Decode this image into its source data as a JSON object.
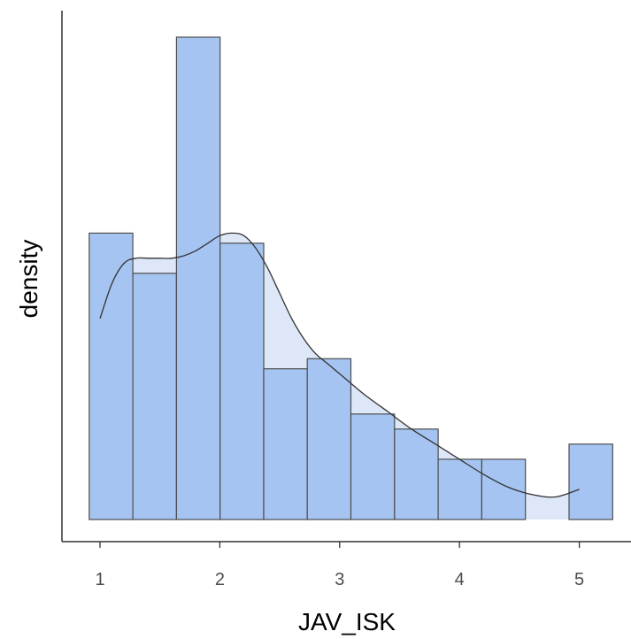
{
  "chart_data": {
    "type": "bar",
    "xlabel": "JAV_ISK",
    "ylabel": "density",
    "xlim": [
      0.83,
      5.45
    ],
    "ylim": [
      0,
      1.0
    ],
    "x_ticks": [
      1,
      2,
      3,
      4,
      5
    ],
    "y_ticks_shown": false,
    "grid": false,
    "legend": "none",
    "series": [
      {
        "kind": "histogram",
        "bin_edges": [
          0.91,
          1.274,
          1.638,
          2.002,
          2.366,
          2.73,
          3.094,
          3.458,
          3.822,
          4.186,
          4.55,
          4.914,
          5.278
        ],
        "values": [
          0.57,
          0.49,
          0.96,
          0.55,
          0.3,
          0.32,
          0.21,
          0.18,
          0.12,
          0.12,
          0.0,
          0.15
        ]
      },
      {
        "kind": "density",
        "x": [
          1.0,
          1.1,
          1.2,
          1.3,
          1.4,
          1.5,
          1.6,
          1.7,
          1.8,
          1.9,
          2.0,
          2.1,
          2.2,
          2.3,
          2.4,
          2.5,
          2.6,
          2.7,
          2.8,
          2.9,
          3.0,
          3.2,
          3.4,
          3.6,
          3.8,
          4.0,
          4.2,
          4.4,
          4.6,
          4.8,
          5.0
        ],
        "values": [
          0.4,
          0.47,
          0.51,
          0.52,
          0.52,
          0.52,
          0.52,
          0.525,
          0.535,
          0.55,
          0.565,
          0.57,
          0.565,
          0.54,
          0.5,
          0.45,
          0.4,
          0.36,
          0.33,
          0.31,
          0.29,
          0.25,
          0.215,
          0.18,
          0.15,
          0.12,
          0.09,
          0.065,
          0.05,
          0.045,
          0.06
        ]
      }
    ],
    "colors": {
      "bar_fill": "#a6c4f1",
      "bar_stroke": "#4d4d4d",
      "density_fill": "#dde7f7",
      "density_stroke": "#333333",
      "axis": "#333333"
    }
  }
}
